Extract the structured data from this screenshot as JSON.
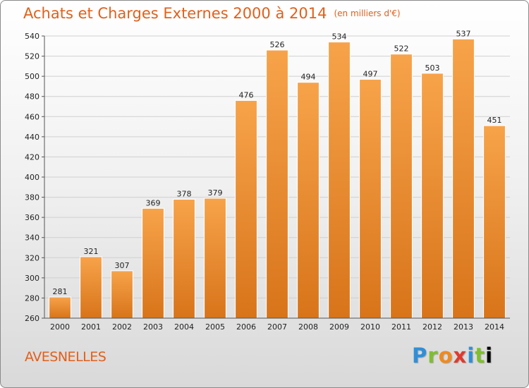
{
  "header": {
    "title": "Achats et Charges Externes 2000 à 2014",
    "subtitle": "(en milliers d'€)"
  },
  "footer": {
    "town": "AVESNELLES",
    "logo": "Proxiti",
    "logo_letters": [
      "P",
      "r",
      "o",
      "x",
      "i",
      "t",
      "i"
    ]
  },
  "colors": {
    "bar_top": "#f7a34a",
    "bar_bottom": "#d8741a",
    "title": "#e0601c"
  },
  "chart_data": {
    "type": "bar",
    "title": "Achats et Charges Externes 2000 à 2014",
    "subtitle": "(en milliers d'€)",
    "categories": [
      "2000",
      "2001",
      "2002",
      "2003",
      "2004",
      "2005",
      "2006",
      "2007",
      "2008",
      "2009",
      "2010",
      "2011",
      "2012",
      "2013",
      "2014"
    ],
    "values": [
      281,
      321,
      307,
      369,
      378,
      379,
      476,
      526,
      494,
      534,
      497,
      522,
      503,
      537,
      451
    ],
    "ylim": [
      260,
      540
    ],
    "yticks": [
      260,
      280,
      300,
      320,
      340,
      360,
      380,
      400,
      420,
      440,
      460,
      480,
      500,
      520,
      540
    ],
    "grid": true,
    "xlabel": "",
    "ylabel": ""
  }
}
